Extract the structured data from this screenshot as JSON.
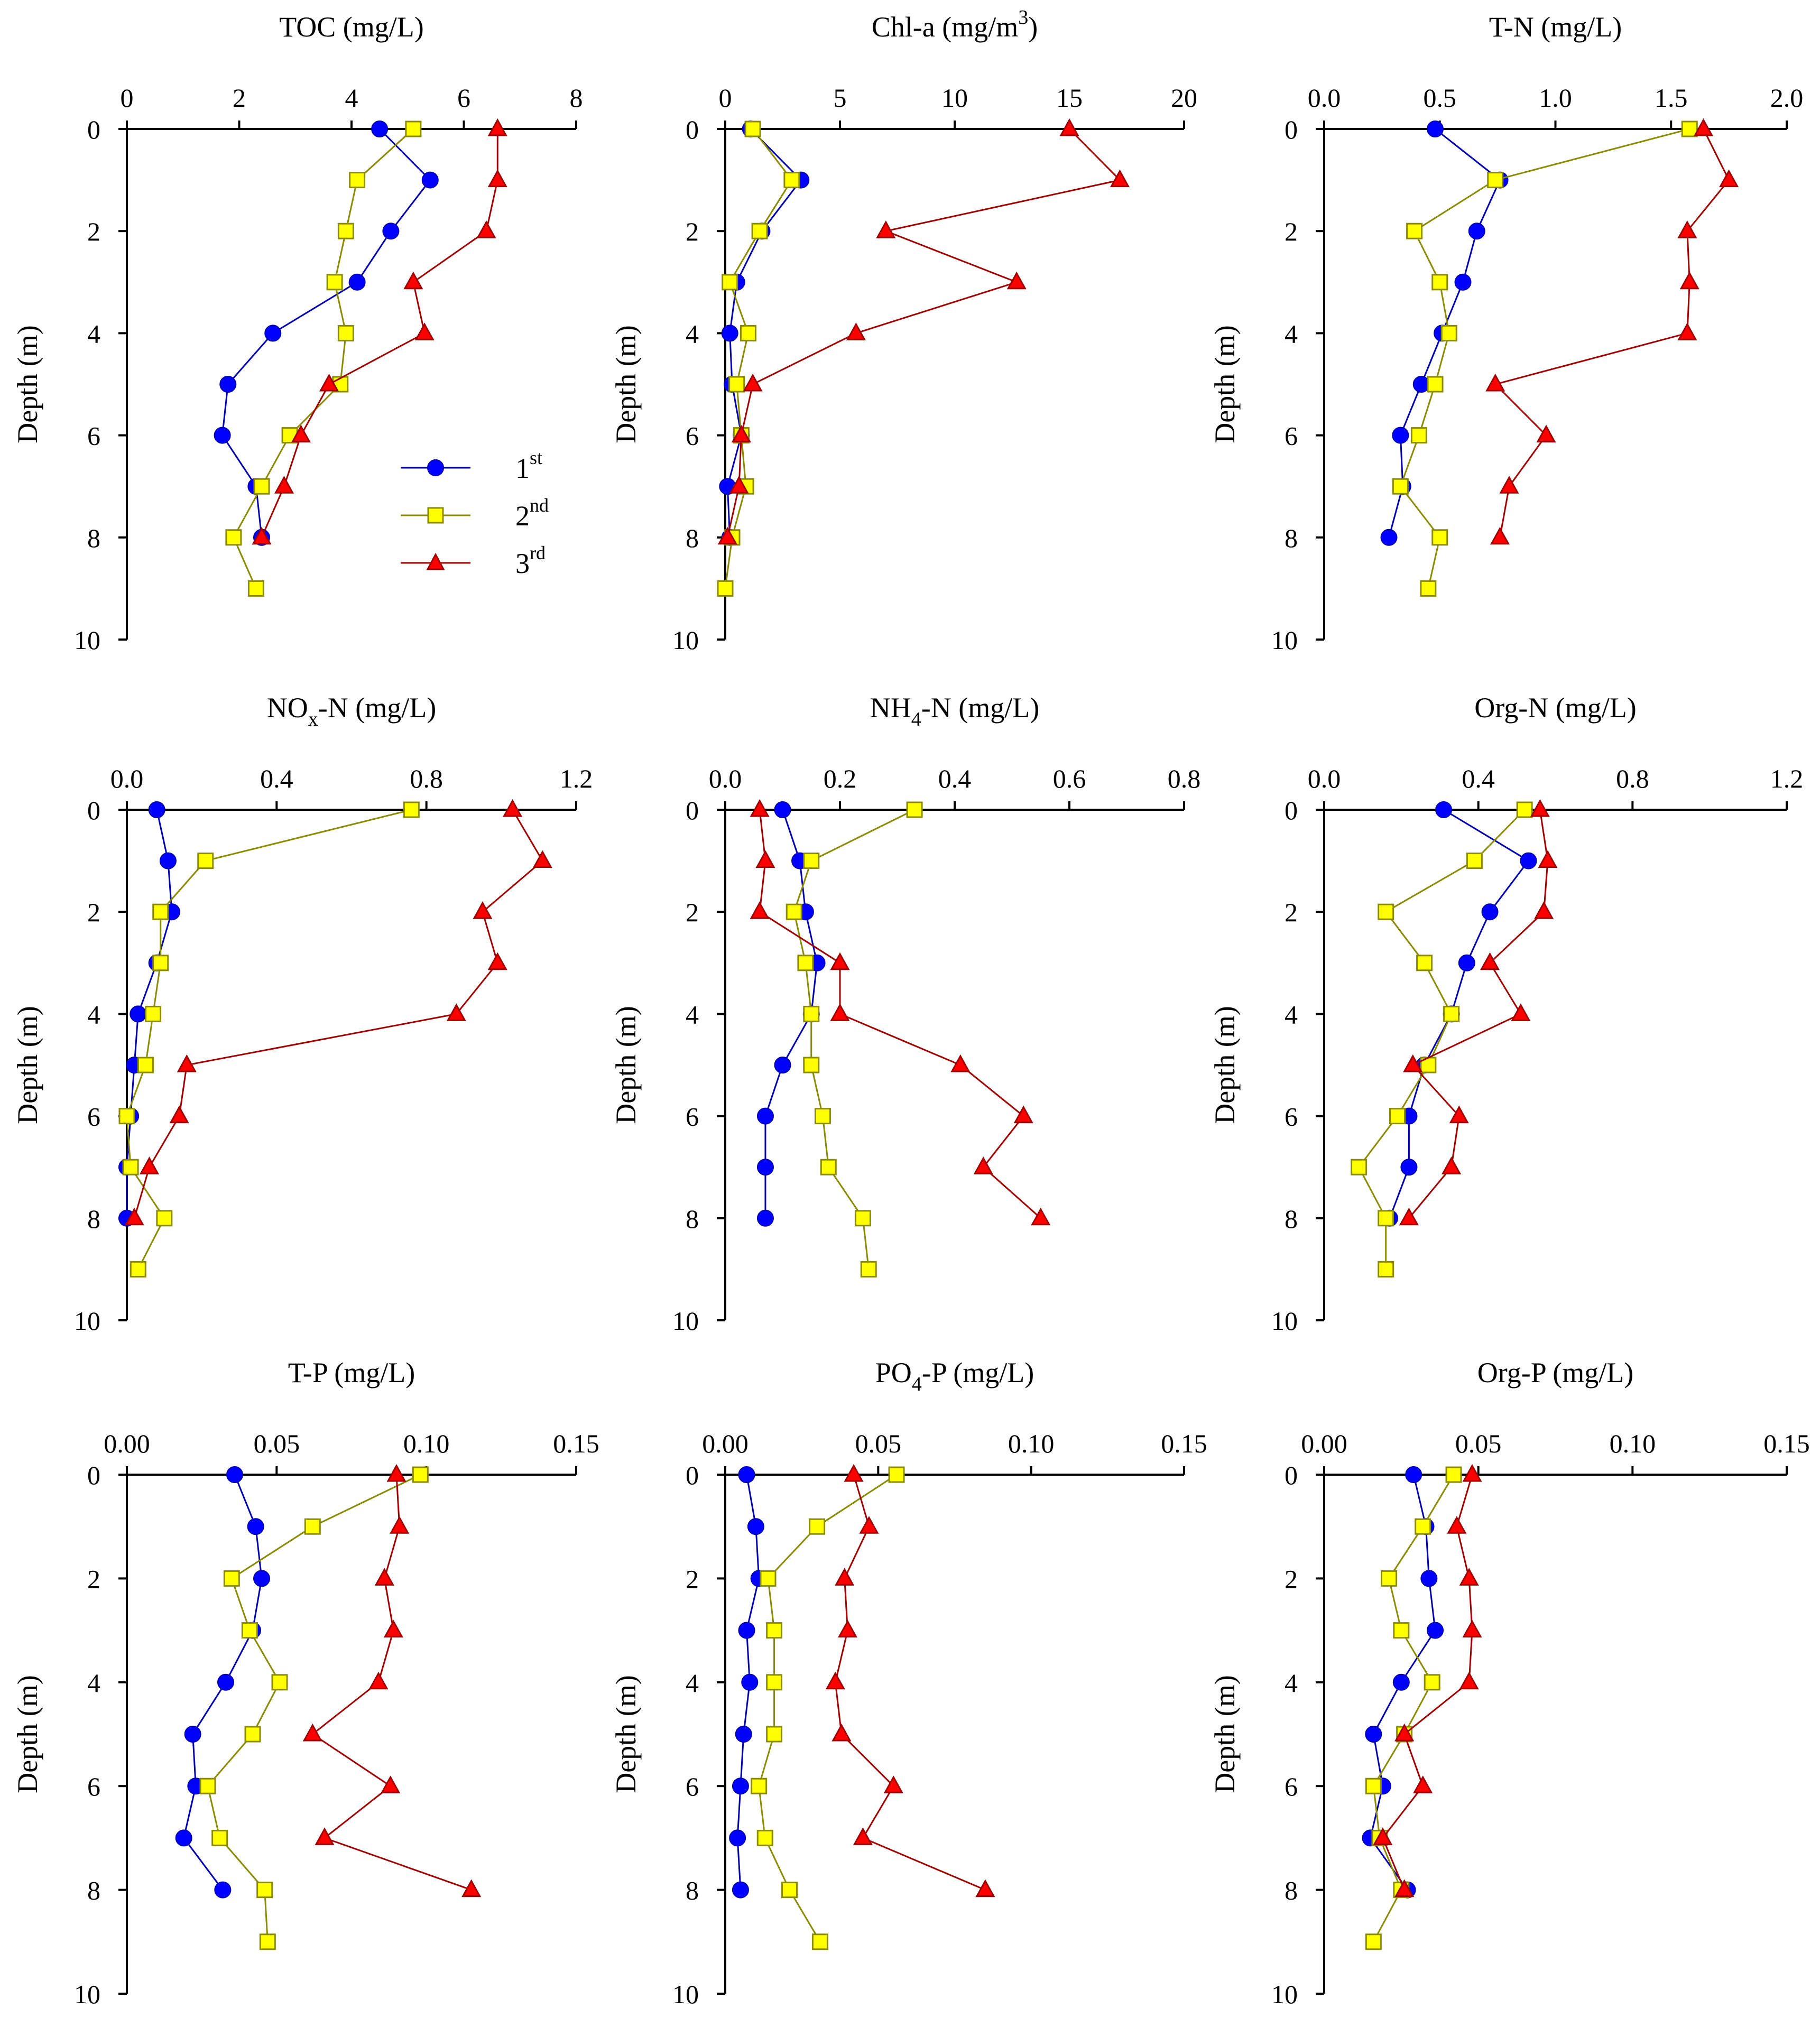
{
  "figure": {
    "legend": [
      {
        "label": "1",
        "sup": "st",
        "color": "#0000ff",
        "line": "#0000b0",
        "marker": "circle"
      },
      {
        "label": "2",
        "sup": "nd",
        "color": "#ffff00",
        "line": "#8b8b00",
        "marker": "square"
      },
      {
        "label": "3",
        "sup": "rd",
        "color": "#ff0000",
        "line": "#a00000",
        "marker": "triangle"
      }
    ],
    "ylabel": "Depth (m)"
  },
  "chart_data": [
    {
      "type": "line",
      "title": "TOC (mg/L)",
      "xlim": [
        0,
        8
      ],
      "xticks": [
        "0",
        "2",
        "4",
        "6",
        "8"
      ],
      "ylabel": "Depth (m)",
      "ylim": [
        0,
        10
      ],
      "yticks": [
        "0",
        "2",
        "4",
        "6",
        "8",
        "10"
      ],
      "series": [
        {
          "name": "1st",
          "x": [
            4.5,
            5.4,
            4.7,
            4.1,
            2.6,
            1.8,
            1.7,
            2.3,
            2.4
          ],
          "y": [
            0,
            1,
            2,
            3,
            4,
            5,
            6,
            7,
            8
          ]
        },
        {
          "name": "2nd",
          "x": [
            5.1,
            4.1,
            3.9,
            3.7,
            3.9,
            3.8,
            2.9,
            2.4,
            1.9,
            2.3
          ],
          "y": [
            0,
            1,
            2,
            3,
            4,
            5,
            6,
            7,
            8,
            9
          ]
        },
        {
          "name": "3rd",
          "x": [
            6.6,
            6.6,
            6.4,
            5.1,
            5.3,
            3.6,
            3.1,
            2.8,
            2.4
          ],
          "y": [
            0,
            1,
            2,
            3,
            4,
            5,
            6,
            7,
            8
          ]
        }
      ]
    },
    {
      "type": "line",
      "title": "Chl-a (mg/m",
      "title_sup": "3",
      "title_end": ")",
      "xlim": [
        0,
        20
      ],
      "xticks": [
        "0",
        "5",
        "10",
        "15",
        "20"
      ],
      "ylabel": "Depth (m)",
      "ylim": [
        0,
        10
      ],
      "yticks": [
        "0",
        "2",
        "4",
        "6",
        "8",
        "10"
      ],
      "series": [
        {
          "name": "1st",
          "x": [
            1.1,
            3.3,
            1.6,
            0.5,
            0.2,
            0.3,
            0.7,
            0.1,
            0.2
          ],
          "y": [
            0,
            1,
            2,
            3,
            4,
            5,
            6,
            7,
            8
          ]
        },
        {
          "name": "2nd",
          "x": [
            1.2,
            2.9,
            1.5,
            0.2,
            1.0,
            0.5,
            0.7,
            0.9,
            0.3,
            0.0
          ],
          "y": [
            0,
            1,
            2,
            3,
            4,
            5,
            6,
            7,
            8,
            9
          ]
        },
        {
          "name": "3rd",
          "x": [
            15.0,
            17.2,
            7.0,
            12.7,
            5.7,
            1.2,
            0.7,
            0.6,
            0.1
          ],
          "y": [
            0,
            1,
            2,
            3,
            4,
            5,
            6,
            7,
            8
          ]
        }
      ]
    },
    {
      "type": "line",
      "title": "T-N (mg/L)",
      "xlim": [
        0,
        2
      ],
      "xticks": [
        "0.0",
        "0.5",
        "1.0",
        "1.5",
        "2.0"
      ],
      "ylabel": "Depth (m)",
      "ylim": [
        0,
        10
      ],
      "yticks": [
        "0",
        "2",
        "4",
        "6",
        "8",
        "10"
      ],
      "series": [
        {
          "name": "1st",
          "x": [
            0.48,
            0.76,
            0.66,
            0.6,
            0.51,
            0.42,
            0.33,
            0.34,
            0.28
          ],
          "y": [
            0,
            1,
            2,
            3,
            4,
            5,
            6,
            7,
            8
          ]
        },
        {
          "name": "2nd",
          "x": [
            1.58,
            0.74,
            0.39,
            0.5,
            0.54,
            0.48,
            0.41,
            0.33,
            0.5,
            0.45
          ],
          "y": [
            0,
            1,
            2,
            3,
            4,
            5,
            6,
            7,
            8,
            9
          ]
        },
        {
          "name": "3rd",
          "x": [
            1.64,
            1.75,
            1.57,
            1.58,
            1.57,
            0.74,
            0.96,
            0.8,
            0.76
          ],
          "y": [
            0,
            1,
            2,
            3,
            4,
            5,
            6,
            7,
            8
          ]
        }
      ]
    },
    {
      "type": "line",
      "title": "NO",
      "title_sub": "x",
      "title_end": "-N (mg/L)",
      "xlim": [
        0,
        1.2
      ],
      "xticks": [
        "0.0",
        "0.4",
        "0.8",
        "1.2"
      ],
      "ylabel": "Depth (m)",
      "ylim": [
        0,
        10
      ],
      "yticks": [
        "0",
        "2",
        "4",
        "6",
        "8",
        "10"
      ],
      "series": [
        {
          "name": "1st",
          "x": [
            0.08,
            0.11,
            0.12,
            0.08,
            0.03,
            0.02,
            0.01,
            0.0,
            0.0
          ],
          "y": [
            0,
            1,
            2,
            3,
            4,
            5,
            6,
            7,
            8
          ]
        },
        {
          "name": "2nd",
          "x": [
            0.76,
            0.21,
            0.09,
            0.09,
            0.07,
            0.05,
            0.0,
            0.01,
            0.1,
            0.03
          ],
          "y": [
            0,
            1,
            2,
            3,
            4,
            5,
            6,
            7,
            8,
            9
          ]
        },
        {
          "name": "3rd",
          "x": [
            1.03,
            1.11,
            0.95,
            0.99,
            0.88,
            0.16,
            0.14,
            0.06,
            0.02
          ],
          "y": [
            0,
            1,
            2,
            3,
            4,
            5,
            6,
            7,
            8
          ]
        }
      ]
    },
    {
      "type": "line",
      "title": "NH",
      "title_sub": "4",
      "title_end": "-N (mg/L)",
      "xlim": [
        0,
        0.8
      ],
      "xticks": [
        "0.0",
        "0.2",
        "0.4",
        "0.6",
        "0.8"
      ],
      "ylabel": "Depth (m)",
      "ylim": [
        0,
        10
      ],
      "yticks": [
        "0",
        "2",
        "4",
        "6",
        "8",
        "10"
      ],
      "series": [
        {
          "name": "1st",
          "x": [
            0.1,
            0.13,
            0.14,
            0.16,
            0.15,
            0.1,
            0.07,
            0.07,
            0.07
          ],
          "y": [
            0,
            1,
            2,
            3,
            4,
            5,
            6,
            7,
            8
          ]
        },
        {
          "name": "2nd",
          "x": [
            0.33,
            0.15,
            0.12,
            0.14,
            0.15,
            0.15,
            0.17,
            0.18,
            0.24,
            0.25
          ],
          "y": [
            0,
            1,
            2,
            3,
            4,
            5,
            6,
            7,
            8,
            9
          ]
        },
        {
          "name": "3rd",
          "x": [
            0.06,
            0.07,
            0.06,
            0.2,
            0.2,
            0.41,
            0.52,
            0.45,
            0.55
          ],
          "y": [
            0,
            1,
            2,
            3,
            4,
            5,
            6,
            7,
            8
          ]
        }
      ]
    },
    {
      "type": "line",
      "title": "Org-N (mg/L)",
      "xlim": [
        0,
        1.2
      ],
      "xticks": [
        "0.0",
        "0.4",
        "0.8",
        "1.2"
      ],
      "ylabel": "Depth (m)",
      "ylim": [
        0,
        10
      ],
      "yticks": [
        "0",
        "2",
        "4",
        "6",
        "8",
        "10"
      ],
      "series": [
        {
          "name": "1st",
          "x": [
            0.31,
            0.53,
            0.43,
            0.37,
            0.33,
            0.26,
            0.22,
            0.22,
            0.17
          ],
          "y": [
            0,
            1,
            2,
            3,
            4,
            5,
            6,
            7,
            8
          ]
        },
        {
          "name": "2nd",
          "x": [
            0.52,
            0.39,
            0.16,
            0.26,
            0.33,
            0.27,
            0.19,
            0.09,
            0.16,
            0.16
          ],
          "y": [
            0,
            1,
            2,
            3,
            4,
            5,
            6,
            7,
            8,
            9
          ]
        },
        {
          "name": "3rd",
          "x": [
            0.56,
            0.58,
            0.57,
            0.43,
            0.51,
            0.23,
            0.35,
            0.33,
            0.22
          ],
          "y": [
            0,
            1,
            2,
            3,
            4,
            5,
            6,
            7,
            8
          ]
        }
      ]
    },
    {
      "type": "line",
      "title": "T-P (mg/L)",
      "xlim": [
        0,
        0.15
      ],
      "xticks": [
        "0.00",
        "0.05",
        "0.10",
        "0.15"
      ],
      "ylabel": "Depth (m)",
      "ylim": [
        0,
        10
      ],
      "yticks": [
        "0",
        "2",
        "4",
        "6",
        "8",
        "10"
      ],
      "series": [
        {
          "name": "1st",
          "x": [
            0.036,
            0.043,
            0.045,
            0.042,
            0.033,
            0.022,
            0.023,
            0.019,
            0.032
          ],
          "y": [
            0,
            1,
            2,
            3,
            4,
            5,
            6,
            7,
            8
          ]
        },
        {
          "name": "2nd",
          "x": [
            0.098,
            0.062,
            0.035,
            0.041,
            0.051,
            0.042,
            0.027,
            0.031,
            0.046,
            0.047
          ],
          "y": [
            0,
            1,
            2,
            3,
            4,
            5,
            6,
            7,
            8,
            9
          ]
        },
        {
          "name": "3rd",
          "x": [
            0.09,
            0.091,
            0.086,
            0.089,
            0.084,
            0.062,
            0.088,
            0.066,
            0.115
          ],
          "y": [
            0,
            1,
            2,
            3,
            4,
            5,
            6,
            7,
            8
          ]
        }
      ]
    },
    {
      "type": "line",
      "title": "PO",
      "title_sub": "4",
      "title_end": "-P (mg/L)",
      "xlim": [
        0,
        0.15
      ],
      "xticks": [
        "0.00",
        "0.05",
        "0.10",
        "0.15"
      ],
      "ylabel": "Depth (m)",
      "ylim": [
        0,
        10
      ],
      "yticks": [
        "0",
        "2",
        "4",
        "6",
        "8",
        "10"
      ],
      "series": [
        {
          "name": "1st",
          "x": [
            0.007,
            0.01,
            0.011,
            0.007,
            0.008,
            0.006,
            0.005,
            0.004,
            0.005
          ],
          "y": [
            0,
            1,
            2,
            3,
            4,
            5,
            6,
            7,
            8
          ]
        },
        {
          "name": "2nd",
          "x": [
            0.056,
            0.03,
            0.014,
            0.016,
            0.016,
            0.016,
            0.011,
            0.013,
            0.021,
            0.031
          ],
          "y": [
            0,
            1,
            2,
            3,
            4,
            5,
            6,
            7,
            8,
            9
          ]
        },
        {
          "name": "3rd",
          "x": [
            0.042,
            0.047,
            0.039,
            0.04,
            0.036,
            0.038,
            0.055,
            0.045,
            0.085
          ],
          "y": [
            0,
            1,
            2,
            3,
            4,
            5,
            6,
            7,
            8
          ]
        }
      ]
    },
    {
      "type": "line",
      "title": "Org-P (mg/L)",
      "xlim": [
        0,
        0.15
      ],
      "xticks": [
        "0.00",
        "0.05",
        "0.10",
        "0.15"
      ],
      "ylabel": "Depth (m)",
      "ylim": [
        0,
        10
      ],
      "yticks": [
        "0",
        "2",
        "4",
        "6",
        "8",
        "10"
      ],
      "series": [
        {
          "name": "1st",
          "x": [
            0.029,
            0.033,
            0.034,
            0.036,
            0.025,
            0.016,
            0.019,
            0.015,
            0.027
          ],
          "y": [
            0,
            1,
            2,
            3,
            4,
            5,
            6,
            7,
            8
          ]
        },
        {
          "name": "2nd",
          "x": [
            0.042,
            0.032,
            0.021,
            0.025,
            0.035,
            0.026,
            0.016,
            0.018,
            0.025,
            0.016
          ],
          "y": [
            0,
            1,
            2,
            3,
            4,
            5,
            6,
            7,
            8,
            9
          ]
        },
        {
          "name": "3rd",
          "x": [
            0.048,
            0.043,
            0.047,
            0.048,
            0.047,
            0.026,
            0.032,
            0.019,
            0.026
          ],
          "y": [
            0,
            1,
            2,
            3,
            4,
            5,
            6,
            7,
            8
          ]
        }
      ]
    }
  ]
}
